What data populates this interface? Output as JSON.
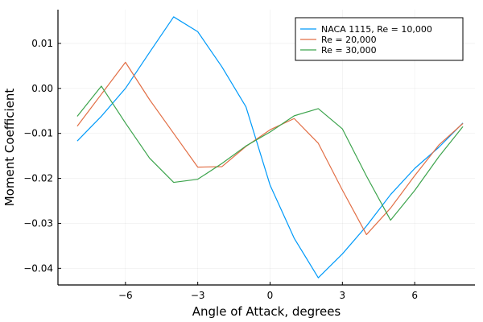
{
  "chart_data": {
    "type": "line",
    "title": "",
    "xlabel": "Angle of Attack, degrees",
    "ylabel": "Moment Coefficient",
    "xlim": [
      -8.8,
      8.5
    ],
    "ylim": [
      -0.0437,
      0.0175
    ],
    "x": [
      -8,
      -7,
      -6,
      -5,
      -4,
      -3,
      -2,
      -1,
      0,
      1,
      2,
      3,
      4,
      5,
      6,
      7,
      8
    ],
    "x_ticks": [
      -6,
      -3,
      0,
      3,
      6
    ],
    "x_tick_labels": [
      "−6",
      "−3",
      "0",
      "3",
      "6"
    ],
    "y_ticks": [
      0.01,
      0.0,
      -0.01,
      -0.02,
      -0.03,
      -0.04
    ],
    "y_tick_labels": [
      "0.01",
      "0.00",
      "−0.01",
      "−0.02",
      "−0.03",
      "−0.04"
    ],
    "grid": true,
    "legend_position": "top-right",
    "series": [
      {
        "name": "NACA 1115, Re = 10,000",
        "color": "#009af9",
        "values": [
          -0.0117,
          -0.0062,
          0.0,
          0.008,
          0.0159,
          0.0126,
          0.0048,
          -0.0041,
          -0.0215,
          -0.0333,
          -0.0421,
          -0.0368,
          -0.0306,
          -0.0236,
          -0.0178,
          -0.0131,
          -0.0077
        ]
      },
      {
        "name": "Re = 20,000",
        "color": "#e26f46",
        "values": [
          -0.0084,
          -0.0013,
          0.0058,
          -0.0025,
          -0.01,
          -0.0175,
          -0.0174,
          -0.0129,
          -0.0092,
          -0.0067,
          -0.0122,
          -0.0226,
          -0.0325,
          -0.0266,
          -0.0194,
          -0.0126,
          -0.0078
        ]
      },
      {
        "name": "Re = 30,000",
        "color": "#3da44d",
        "values": [
          -0.0062,
          0.0005,
          -0.0077,
          -0.0155,
          -0.0209,
          -0.0202,
          -0.0167,
          -0.0128,
          -0.0097,
          -0.0061,
          -0.0045,
          -0.009,
          -0.0195,
          -0.0293,
          -0.0227,
          -0.0152,
          -0.0085
        ]
      }
    ]
  }
}
